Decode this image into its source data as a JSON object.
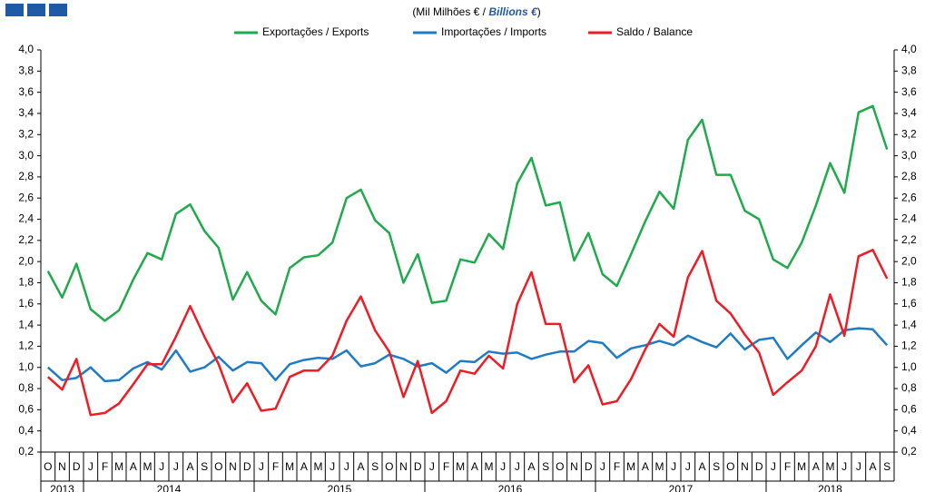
{
  "chart_data": {
    "type": "line",
    "subtitle": [
      "(Mil Milhões € / ",
      "Billions €",
      ")"
    ],
    "categories": [
      "O",
      "N",
      "D",
      "J",
      "F",
      "M",
      "A",
      "M",
      "J",
      "J",
      "A",
      "S",
      "O",
      "N",
      "D",
      "J",
      "F",
      "M",
      "A",
      "M",
      "J",
      "J",
      "A",
      "S",
      "O",
      "N",
      "D",
      "J",
      "F",
      "M",
      "A",
      "M",
      "J",
      "J",
      "A",
      "S",
      "O",
      "N",
      "D",
      "J",
      "F",
      "M",
      "A",
      "M",
      "J",
      "J",
      "A",
      "S",
      "O",
      "N",
      "D",
      "J",
      "F",
      "M",
      "A",
      "M",
      "J",
      "J",
      "A",
      "S"
    ],
    "years": [
      "2013",
      "2014",
      "2015",
      "2016",
      "2017",
      "2018"
    ],
    "series": [
      {
        "name": "Exportações / Exports",
        "color": "#1faa4b",
        "values": [
          1.91,
          1.66,
          1.98,
          1.55,
          1.44,
          1.54,
          1.83,
          2.08,
          2.02,
          2.45,
          2.54,
          2.29,
          2.13,
          1.64,
          1.9,
          1.63,
          1.5,
          1.94,
          2.04,
          2.06,
          2.18,
          2.6,
          2.68,
          2.39,
          2.27,
          1.8,
          2.07,
          1.61,
          1.63,
          2.02,
          1.99,
          2.26,
          2.12,
          2.74,
          2.98,
          2.53,
          2.56,
          2.01,
          2.27,
          1.88,
          1.77,
          2.07,
          2.38,
          2.66,
          2.5,
          3.15,
          3.34,
          2.82,
          2.82,
          2.48,
          2.4,
          2.02,
          1.94,
          2.18,
          2.53,
          2.93,
          2.65,
          3.41,
          3.47,
          3.06
        ]
      },
      {
        "name": "Importações / Imports",
        "color": "#1f7bc4",
        "values": [
          1.0,
          0.88,
          0.9,
          1.0,
          0.87,
          0.88,
          0.99,
          1.05,
          0.98,
          1.16,
          0.96,
          1.0,
          1.1,
          0.97,
          1.05,
          1.04,
          0.88,
          1.03,
          1.07,
          1.09,
          1.08,
          1.16,
          1.01,
          1.04,
          1.12,
          1.08,
          1.01,
          1.04,
          0.95,
          1.06,
          1.05,
          1.15,
          1.13,
          1.14,
          1.08,
          1.12,
          1.15,
          1.15,
          1.25,
          1.23,
          1.09,
          1.18,
          1.21,
          1.25,
          1.21,
          1.3,
          1.24,
          1.19,
          1.32,
          1.17,
          1.26,
          1.28,
          1.08,
          1.21,
          1.33,
          1.24,
          1.35,
          1.37,
          1.36,
          1.21
        ]
      },
      {
        "name": "Saldo / Balance",
        "color": "#ee1c25",
        "values": [
          0.91,
          0.79,
          1.08,
          0.55,
          0.57,
          0.66,
          0.84,
          1.03,
          1.03,
          1.29,
          1.58,
          1.29,
          1.03,
          0.67,
          0.85,
          0.59,
          0.61,
          0.91,
          0.97,
          0.97,
          1.11,
          1.44,
          1.67,
          1.35,
          1.15,
          0.72,
          1.06,
          0.57,
          0.68,
          0.97,
          0.94,
          1.11,
          0.99,
          1.6,
          1.9,
          1.41,
          1.41,
          0.86,
          1.02,
          0.65,
          0.68,
          0.89,
          1.17,
          1.41,
          1.29,
          1.85,
          2.1,
          1.63,
          1.51,
          1.31,
          1.14,
          0.74,
          0.86,
          0.97,
          1.2,
          1.69,
          1.3,
          2.05,
          2.11,
          1.84
        ]
      }
    ],
    "ylim": [
      0.2,
      4.0
    ],
    "yticks": [
      {
        "value": 0.2,
        "label": "0,2"
      },
      {
        "value": 0.4,
        "label": "0,4"
      },
      {
        "value": 0.6,
        "label": "0,6"
      },
      {
        "value": 0.8,
        "label": "0,8"
      },
      {
        "value": 1.0,
        "label": "1,0"
      },
      {
        "value": 1.2,
        "label": "1,2"
      },
      {
        "value": 1.4,
        "label": "1,4"
      },
      {
        "value": 1.6,
        "label": "1,6"
      },
      {
        "value": 1.8,
        "label": "1,8"
      },
      {
        "value": 2.0,
        "label": "2,0"
      },
      {
        "value": 2.2,
        "label": "2,2"
      },
      {
        "value": 2.4,
        "label": "2,4"
      },
      {
        "value": 2.6,
        "label": "2,6"
      },
      {
        "value": 2.8,
        "label": "2,8"
      },
      {
        "value": 3.0,
        "label": "3,0"
      },
      {
        "value": 3.2,
        "label": "3,2"
      },
      {
        "value": 3.4,
        "label": "3,4"
      },
      {
        "value": 3.6,
        "label": "3,6"
      },
      {
        "value": 3.8,
        "label": "3,8"
      },
      {
        "value": 4.0,
        "label": "4,0"
      }
    ],
    "grid": false,
    "legend": "top"
  }
}
